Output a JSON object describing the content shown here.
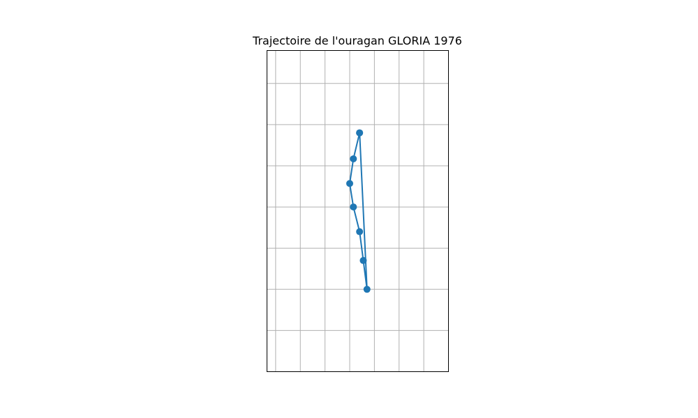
{
  "chart_data": {
    "type": "line",
    "title": "Trajectoire de l'ouragan GLORIA 1976",
    "xlabel": "",
    "ylabel": "",
    "grid": true,
    "xlim": [
      -0.35,
      7.0
    ],
    "ylim": [
      0.0,
      7.8
    ],
    "series": [
      {
        "values": [
          {
            "x": 3.4,
            "y": 5.8
          },
          {
            "x": 3.15,
            "y": 5.17
          },
          {
            "x": 3.0,
            "y": 4.57
          },
          {
            "x": 3.15,
            "y": 4.0
          },
          {
            "x": 3.4,
            "y": 3.4
          },
          {
            "x": 3.55,
            "y": 2.7
          },
          {
            "x": 3.7,
            "y": 2.0
          },
          {
            "x": 3.4,
            "y": 5.8
          }
        ]
      }
    ],
    "colors": {
      "line": "#1f77b4",
      "grid": "#b0b0b0"
    }
  }
}
